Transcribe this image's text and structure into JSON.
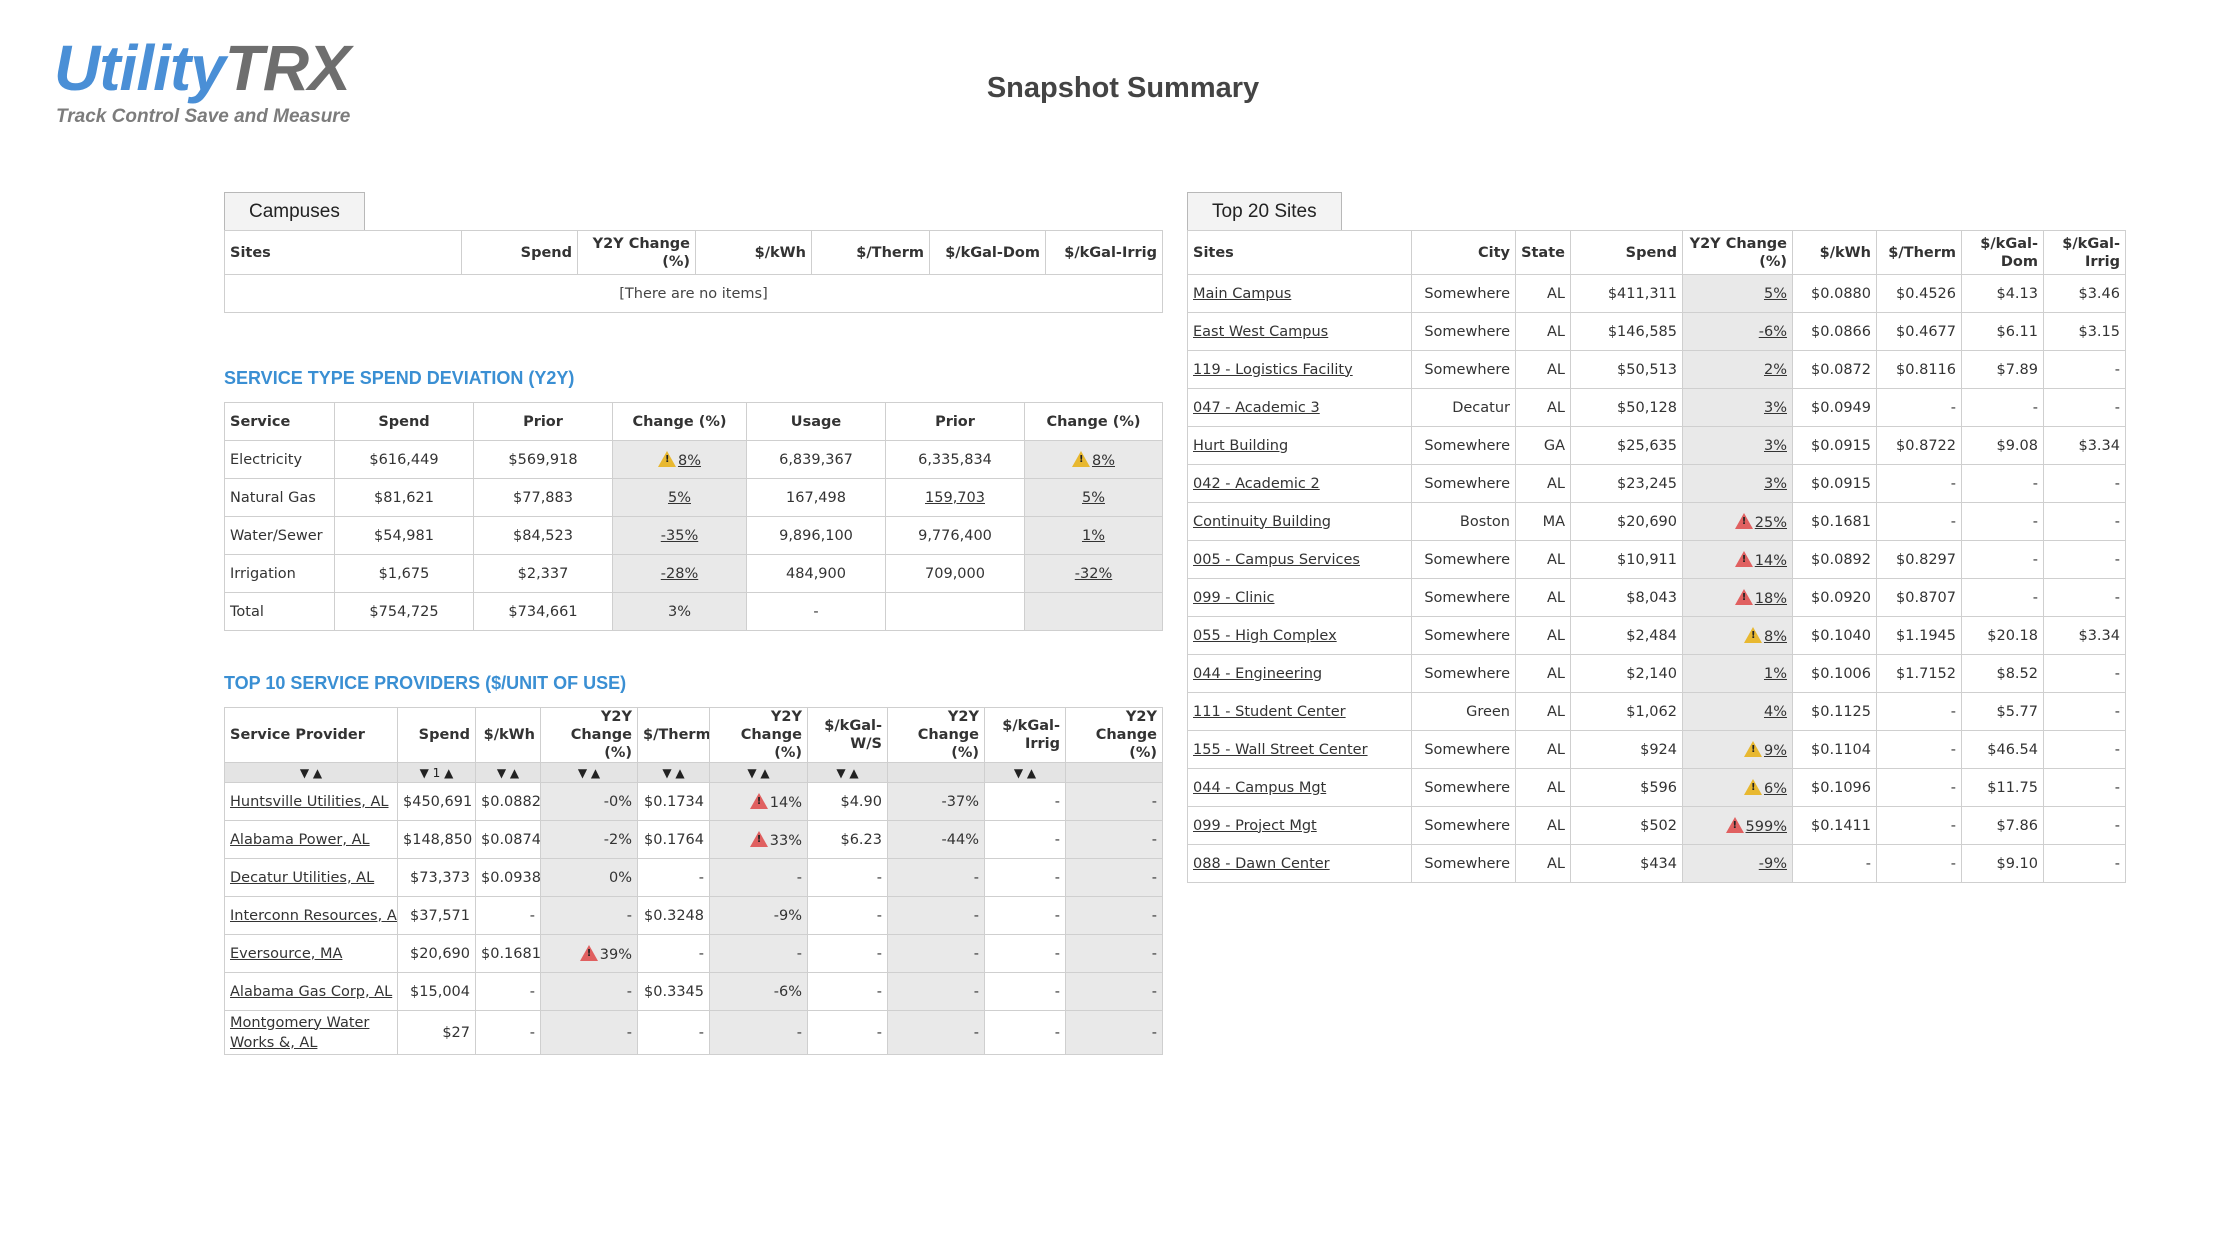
{
  "header": {
    "logo_part1": "Utility",
    "logo_part2": "TRX",
    "tagline": "Track Control Save and Measure",
    "page_title": "Snapshot Summary"
  },
  "campuses": {
    "tab_label": "Campuses",
    "headers": [
      "Sites",
      "Spend",
      "Y2Y Change (%)",
      "$/kWh",
      "$/Therm",
      "$/kGal-Dom",
      "$/kGal-Irrig"
    ],
    "empty_text": "[There are no items]"
  },
  "service_deviation": {
    "title": "SERVICE TYPE SPEND DEVIATION (Y2Y)",
    "headers": [
      "Service",
      "Spend",
      "Prior",
      "Change (%)",
      "Usage",
      "Prior",
      "Change (%)"
    ],
    "rows": [
      {
        "service": "Electricity",
        "spend": "$616,449",
        "prior": "$569,918",
        "change": "8%",
        "change_warn": "yellow",
        "usage": "6,839,367",
        "uprior": "6,335,834",
        "uchange": "8%",
        "uchange_warn": "yellow",
        "uprior_link": false
      },
      {
        "service": "Natural Gas",
        "spend": "$81,621",
        "prior": "$77,883",
        "change": "5%",
        "change_warn": "",
        "usage": "167,498",
        "uprior": "159,703",
        "uchange": "5%",
        "uchange_warn": "",
        "uprior_link": true
      },
      {
        "service": "Water/Sewer",
        "spend": "$54,981",
        "prior": "$84,523",
        "change": "-35%",
        "change_warn": "",
        "usage": "9,896,100",
        "uprior": "9,776,400",
        "uchange": "1%",
        "uchange_warn": "",
        "uprior_link": false
      },
      {
        "service": "Irrigation",
        "spend": "$1,675",
        "prior": "$2,337",
        "change": "-28%",
        "change_warn": "",
        "usage": "484,900",
        "uprior": "709,000",
        "uchange": "-32%",
        "uchange_warn": "",
        "uprior_link": false
      }
    ],
    "total": {
      "service": "Total",
      "spend": "$754,725",
      "prior": "$734,661",
      "change": "3%",
      "usage": "-"
    }
  },
  "providers": {
    "title": "TOP 10 SERVICE PROVIDERS ($/UNIT OF USE)",
    "headers": [
      "Service Provider",
      "Spend",
      "$/kWh",
      "Y2Y Change (%)",
      "$/Therm",
      "Y2Y Change (%)",
      "$/kGal-W/S",
      "Y2Y Change (%)",
      "$/kGal-Irrig",
      "Y2Y Change (%)"
    ],
    "sort_arrows": "▼ ▲",
    "sort_arrows_spend": "▼ 1 ▲",
    "rows": [
      {
        "name": "Huntsville Utilities, AL",
        "spend": "$450,691",
        "kwh": "$0.0882",
        "kwh_chg": "-0%",
        "kwh_warn": "",
        "therm": "$0.1734",
        "therm_chg": "14%",
        "therm_warn": "red",
        "ws": "$4.90",
        "ws_chg": "-37%",
        "irr": "-",
        "irr_chg": "-"
      },
      {
        "name": "Alabama Power, AL",
        "spend": "$148,850",
        "kwh": "$0.0874",
        "kwh_chg": "-2%",
        "kwh_warn": "",
        "therm": "$0.1764",
        "therm_chg": "33%",
        "therm_warn": "red",
        "ws": "$6.23",
        "ws_chg": "-44%",
        "irr": "-",
        "irr_chg": "-"
      },
      {
        "name": "Decatur Utilities, AL",
        "spend": "$73,373",
        "kwh": "$0.0938",
        "kwh_chg": "0%",
        "kwh_warn": "",
        "therm": "-",
        "therm_chg": "-",
        "therm_warn": "",
        "ws": "-",
        "ws_chg": "-",
        "irr": "-",
        "irr_chg": "-"
      },
      {
        "name": "Interconn Resources, AL",
        "spend": "$37,571",
        "kwh": "-",
        "kwh_chg": "-",
        "kwh_warn": "",
        "therm": "$0.3248",
        "therm_chg": "-9%",
        "therm_warn": "",
        "ws": "-",
        "ws_chg": "-",
        "irr": "-",
        "irr_chg": "-"
      },
      {
        "name": "Eversource, MA",
        "spend": "$20,690",
        "kwh": "$0.1681",
        "kwh_chg": "39%",
        "kwh_warn": "red",
        "therm": "-",
        "therm_chg": "-",
        "therm_warn": "",
        "ws": "-",
        "ws_chg": "-",
        "irr": "-",
        "irr_chg": "-"
      },
      {
        "name": "Alabama Gas Corp, AL",
        "spend": "$15,004",
        "kwh": "-",
        "kwh_chg": "-",
        "kwh_warn": "",
        "therm": "$0.3345",
        "therm_chg": "-6%",
        "therm_warn": "",
        "ws": "-",
        "ws_chg": "-",
        "irr": "-",
        "irr_chg": "-"
      },
      {
        "name": "Montgomery Water Works &, AL",
        "spend": "$27",
        "kwh": "-",
        "kwh_chg": "-",
        "kwh_warn": "",
        "therm": "-",
        "therm_chg": "-",
        "therm_warn": "",
        "ws": "-",
        "ws_chg": "-",
        "irr": "-",
        "irr_chg": "-"
      }
    ]
  },
  "top_sites": {
    "tab_label": "Top 20 Sites",
    "headers": [
      "Sites",
      "City",
      "State",
      "Spend",
      "Y2Y Change (%)",
      "$/kWh",
      "$/Therm",
      "$/kGal-Dom",
      "$/kGal-Irrig"
    ],
    "rows": [
      {
        "site": "Main Campus",
        "city": "Somewhere",
        "state": "AL",
        "spend": "$411,311",
        "chg": "5%",
        "warn": "",
        "kwh": "$0.0880",
        "therm": "$0.4526",
        "dom": "$4.13",
        "irr": "$3.46"
      },
      {
        "site": "East West Campus",
        "city": "Somewhere",
        "state": "AL",
        "spend": "$146,585",
        "chg": "-6%",
        "warn": "",
        "kwh": "$0.0866",
        "therm": "$0.4677",
        "dom": "$6.11",
        "irr": "$3.15"
      },
      {
        "site": "119 - Logistics Facility",
        "city": "Somewhere",
        "state": "AL",
        "spend": "$50,513",
        "chg": "2%",
        "warn": "",
        "kwh": "$0.0872",
        "therm": "$0.8116",
        "dom": "$7.89",
        "irr": "-"
      },
      {
        "site": "047 - Academic 3",
        "city": "Decatur",
        "state": "AL",
        "spend": "$50,128",
        "chg": "3%",
        "warn": "",
        "kwh": "$0.0949",
        "therm": "-",
        "dom": "-",
        "irr": "-"
      },
      {
        "site": "Hurt Building",
        "city": "Somewhere",
        "state": "GA",
        "spend": "$25,635",
        "chg": "3%",
        "warn": "",
        "kwh": "$0.0915",
        "therm": "$0.8722",
        "dom": "$9.08",
        "irr": "$3.34"
      },
      {
        "site": "042 - Academic 2",
        "city": "Somewhere",
        "state": "AL",
        "spend": "$23,245",
        "chg": "3%",
        "warn": "",
        "kwh": "$0.0915",
        "therm": "-",
        "dom": "-",
        "irr": "-"
      },
      {
        "site": "Continuity Building",
        "city": "Boston",
        "state": "MA",
        "spend": "$20,690",
        "chg": "25%",
        "warn": "red",
        "kwh": "$0.1681",
        "therm": "-",
        "dom": "-",
        "irr": "-"
      },
      {
        "site": "005 - Campus Services",
        "city": "Somewhere",
        "state": "AL",
        "spend": "$10,911",
        "chg": "14%",
        "warn": "red",
        "kwh": "$0.0892",
        "therm": "$0.8297",
        "dom": "-",
        "irr": "-"
      },
      {
        "site": "099 - Clinic",
        "city": "Somewhere",
        "state": "AL",
        "spend": "$8,043",
        "chg": "18%",
        "warn": "red",
        "kwh": "$0.0920",
        "therm": "$0.8707",
        "dom": "-",
        "irr": "-"
      },
      {
        "site": "055 - High Complex",
        "city": "Somewhere",
        "state": "AL",
        "spend": "$2,484",
        "chg": "8%",
        "warn": "yellow",
        "kwh": "$0.1040",
        "therm": "$1.1945",
        "dom": "$20.18",
        "irr": "$3.34"
      },
      {
        "site": "044 - Engineering",
        "city": "Somewhere",
        "state": "AL",
        "spend": "$2,140",
        "chg": "1%",
        "warn": "",
        "kwh": "$0.1006",
        "therm": "$1.7152",
        "dom": "$8.52",
        "irr": "-"
      },
      {
        "site": "111 - Student Center",
        "city": "Green",
        "state": "AL",
        "spend": "$1,062",
        "chg": "4%",
        "warn": "",
        "kwh": "$0.1125",
        "therm": "-",
        "dom": "$5.77",
        "irr": "-"
      },
      {
        "site": "155 - Wall Street Center",
        "city": "Somewhere",
        "state": "AL",
        "spend": "$924",
        "chg": "9%",
        "warn": "yellow",
        "kwh": "$0.1104",
        "therm": "-",
        "dom": "$46.54",
        "irr": "-"
      },
      {
        "site": "044 - Campus Mgt",
        "city": "Somewhere",
        "state": "AL",
        "spend": "$596",
        "chg": "6%",
        "warn": "yellow",
        "kwh": "$0.1096",
        "therm": "-",
        "dom": "$11.75",
        "irr": "-"
      },
      {
        "site": "099 - Project Mgt",
        "city": "Somewhere",
        "state": "AL",
        "spend": "$502",
        "chg": "599%",
        "warn": "red",
        "kwh": "$0.1411",
        "therm": "-",
        "dom": "$7.86",
        "irr": "-"
      },
      {
        "site": "088 - Dawn Center",
        "city": "Somewhere",
        "state": "AL",
        "spend": "$434",
        "chg": "-9%",
        "warn": "",
        "kwh": "-",
        "therm": "-",
        "dom": "$9.10",
        "irr": "-"
      }
    ]
  }
}
